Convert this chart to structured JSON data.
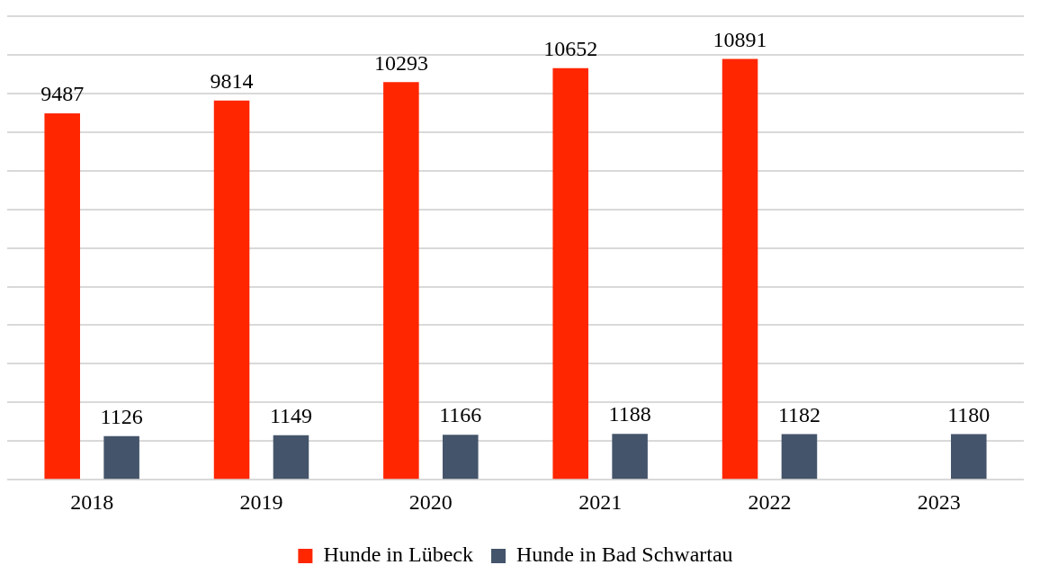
{
  "chart_data": {
    "type": "bar",
    "categories": [
      "2018",
      "2019",
      "2020",
      "2021",
      "2022",
      "2023"
    ],
    "series": [
      {
        "name": "Hunde in Lübeck",
        "color": "#ff2600",
        "values": [
          9487,
          9814,
          10293,
          10652,
          10891,
          null
        ]
      },
      {
        "name": "Hunde in Bad Schwartau",
        "color": "#44546a",
        "values": [
          1126,
          1149,
          1166,
          1188,
          1182,
          1180
        ]
      }
    ],
    "ylim": [
      0,
      12000
    ],
    "yticks": [
      {
        "value": 0,
        "label": null
      },
      {
        "value": 1000,
        "label": null
      },
      {
        "value": 2000,
        "label": null
      },
      {
        "value": 3000,
        "label": null
      },
      {
        "value": 4000,
        "label": null
      },
      {
        "value": 5000,
        "label": null
      },
      {
        "value": 6000,
        "label": null
      },
      {
        "value": 7000,
        "label": null
      },
      {
        "value": 8000,
        "label": null
      },
      {
        "value": 9000,
        "label": null
      },
      {
        "value": 10000,
        "label": null
      },
      {
        "value": 11000,
        "label": null
      },
      {
        "value": 12000,
        "label": null
      }
    ],
    "tick_labels": "x",
    "grid": "y",
    "legend": "bottom",
    "data_labels": true
  }
}
